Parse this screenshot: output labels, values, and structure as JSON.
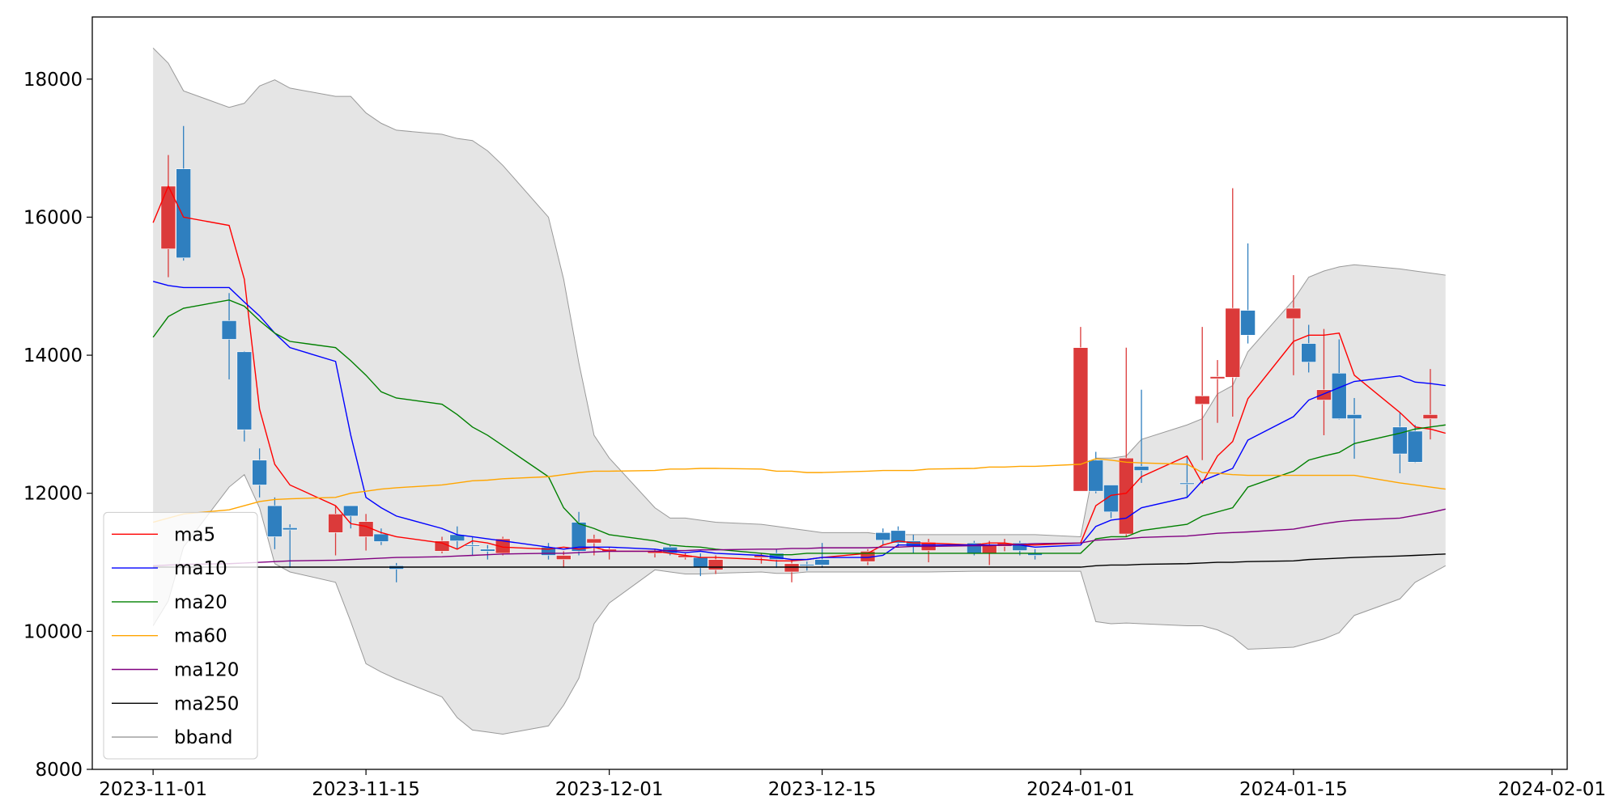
{
  "chart_data": {
    "type": "candlestick",
    "x": [
      "2023-11-01",
      "2023-11-02",
      "2023-11-03",
      "2023-11-06",
      "2023-11-07",
      "2023-11-08",
      "2023-11-09",
      "2023-11-10",
      "2023-11-13",
      "2023-11-14",
      "2023-11-15",
      "2023-11-16",
      "2023-11-17",
      "2023-11-20",
      "2023-11-21",
      "2023-11-22",
      "2023-11-23",
      "2023-11-24",
      "2023-11-27",
      "2023-11-28",
      "2023-11-29",
      "2023-11-30",
      "2023-12-01",
      "2023-12-04",
      "2023-12-05",
      "2023-12-06",
      "2023-12-07",
      "2023-12-08",
      "2023-12-11",
      "2023-12-12",
      "2023-12-13",
      "2023-12-14",
      "2023-12-15",
      "2023-12-18",
      "2023-12-19",
      "2023-12-20",
      "2023-12-21",
      "2023-12-22",
      "2023-12-25",
      "2023-12-26",
      "2023-12-27",
      "2023-12-28",
      "2023-12-29",
      "2024-01-01",
      "2024-01-02",
      "2024-01-03",
      "2024-01-04",
      "2024-01-05",
      "2024-01-08",
      "2024-01-09",
      "2024-01-10",
      "2024-01-11",
      "2024-01-12",
      "2024-01-15",
      "2024-01-16",
      "2024-01-17",
      "2024-01-18",
      "2024-01-19",
      "2024-01-22",
      "2024-01-23",
      "2024-01-24",
      "2024-01-25"
    ],
    "open": [
      null,
      15540,
      16700,
      14500,
      14050,
      12480,
      11820,
      11500,
      11430,
      11820,
      11370,
      11410,
      10950,
      11160,
      11400,
      11250,
      11190,
      11130,
      11220,
      11040,
      11580,
      11280,
      11160,
      11130,
      11220,
      11070,
      11070,
      10890,
      11070,
      11130,
      10860,
      10970,
      11040,
      11010,
      11430,
      11460,
      11310,
      11170,
      11280,
      11130,
      11230,
      11280,
      11130,
      12030,
      12480,
      12120,
      11410,
      12390,
      12150,
      13290,
      13660,
      13680,
      14650,
      14530,
      14170,
      13350,
      13740,
      13140,
      12960,
      12900,
      13080,
      null
    ],
    "high": [
      null,
      16900,
      17320,
      14900,
      14060,
      12650,
      11940,
      11550,
      11820,
      11820,
      11700,
      11490,
      10990,
      11370,
      11520,
      11370,
      11250,
      11370,
      11280,
      11160,
      11730,
      11400,
      11220,
      11190,
      11250,
      11130,
      11130,
      11100,
      11130,
      11190,
      11040,
      11010,
      11280,
      11190,
      11490,
      11520,
      11400,
      11340,
      11310,
      11310,
      11340,
      11310,
      11190,
      14410,
      12600,
      12120,
      14110,
      13500,
      12540,
      14410,
      13930,
      16420,
      15620,
      15160,
      14440,
      14380,
      14230,
      13380,
      13170,
      12990,
      13800,
      null
    ],
    "low": [
      null,
      15130,
      15370,
      13650,
      12750,
      11940,
      11190,
      10920,
      11100,
      11490,
      11170,
      11250,
      10710,
      11130,
      11190,
      11100,
      11040,
      11100,
      11040,
      10920,
      11100,
      11100,
      11040,
      11070,
      11100,
      11040,
      10800,
      10830,
      10980,
      10920,
      10710,
      10880,
      10920,
      10960,
      11250,
      11220,
      11130,
      11000,
      11100,
      10960,
      11160,
      11100,
      11040,
      12030,
      12000,
      11640,
      11370,
      12150,
      11940,
      12480,
      13020,
      13110,
      14170,
      13710,
      13750,
      12840,
      13070,
      12500,
      12290,
      12440,
      12780,
      null
    ],
    "close": [
      null,
      16450,
      15410,
      14230,
      12920,
      12120,
      11370,
      11470,
      11700,
      11670,
      11590,
      11300,
      10900,
      11310,
      11310,
      11240,
      11160,
      11340,
      11100,
      11100,
      11160,
      11340,
      11190,
      11160,
      11130,
      11100,
      10920,
      11040,
      11100,
      11040,
      10980,
      10950,
      10960,
      11160,
      11320,
      11280,
      11230,
      11290,
      11130,
      11250,
      11280,
      11170,
      11100,
      14110,
      12030,
      11730,
      12510,
      12330,
      12130,
      13410,
      13690,
      14680,
      14290,
      14680,
      13900,
      13500,
      13080,
      13080,
      12570,
      12450,
      13140,
      null
    ],
    "up_color": "#db3a3a",
    "down_color": "#2f7fbf",
    "series": [
      {
        "name": "ma5",
        "color": "#ff0000",
        "values": [
          15920,
          16450,
          16000,
          15880,
          15100,
          13220,
          12420,
          12120,
          11820,
          11560,
          11520,
          11430,
          11370,
          11280,
          11190,
          11310,
          11280,
          11220,
          11190,
          11220,
          11190,
          11220,
          11160,
          11160,
          11130,
          11100,
          11070,
          11070,
          11040,
          11020,
          11020,
          11040,
          11070,
          11130,
          11250,
          11310,
          11280,
          11280,
          11250,
          11280,
          11280,
          11250,
          11250,
          11280,
          11820,
          11970,
          12000,
          12240,
          12540,
          12150,
          12540,
          12750,
          13370,
          14200,
          14290,
          14290,
          14320,
          13710,
          13170,
          12960,
          12930,
          12870
        ]
      },
      {
        "name": "ma10",
        "color": "#0000ff",
        "values": [
          15070,
          15010,
          14980,
          14980,
          14770,
          14570,
          14320,
          14110,
          13910,
          12840,
          11940,
          11790,
          11670,
          11490,
          11400,
          11370,
          11340,
          11310,
          11220,
          11190,
          11220,
          11220,
          11220,
          11190,
          11160,
          11140,
          11160,
          11130,
          11100,
          11070,
          11040,
          11040,
          11070,
          11070,
          11100,
          11250,
          11250,
          11250,
          11250,
          11250,
          11250,
          11250,
          11220,
          11250,
          11520,
          11610,
          11640,
          11790,
          11940,
          12180,
          12270,
          12360,
          12770,
          13110,
          13350,
          13440,
          13530,
          13620,
          13700,
          13610,
          13590,
          13560
        ]
      },
      {
        "name": "ma20",
        "color": "#008000",
        "values": [
          14260,
          14560,
          14680,
          14800,
          14710,
          14500,
          14320,
          14200,
          14110,
          13920,
          13710,
          13470,
          13380,
          13290,
          13140,
          12960,
          12840,
          12690,
          12240,
          11790,
          11560,
          11490,
          11400,
          11310,
          11250,
          11230,
          11220,
          11190,
          11130,
          11110,
          11110,
          11130,
          11130,
          11130,
          11130,
          11130,
          11130,
          11130,
          11130,
          11130,
          11130,
          11130,
          11130,
          11130,
          11340,
          11370,
          11370,
          11460,
          11550,
          11670,
          11730,
          11790,
          12090,
          12320,
          12480,
          12540,
          12590,
          12720,
          12870,
          12930,
          12960,
          12990
        ]
      },
      {
        "name": "ma60",
        "color": "#ffa500",
        "values": [
          11580,
          11640,
          11700,
          11760,
          11820,
          11880,
          11910,
          11920,
          11940,
          12000,
          12030,
          12060,
          12080,
          12120,
          12150,
          12180,
          12190,
          12210,
          12240,
          12270,
          12300,
          12320,
          12320,
          12330,
          12350,
          12350,
          12360,
          12360,
          12350,
          12320,
          12320,
          12300,
          12300,
          12320,
          12330,
          12330,
          12330,
          12350,
          12360,
          12380,
          12380,
          12390,
          12390,
          12420,
          12500,
          12480,
          12450,
          12440,
          12420,
          12300,
          12290,
          12270,
          12260,
          12260,
          12260,
          12260,
          12260,
          12260,
          12150,
          12120,
          12090,
          12060
        ]
      },
      {
        "name": "ma120",
        "color": "#800080",
        "values": [
          10950,
          10960,
          10970,
          10980,
          10990,
          11000,
          11010,
          11020,
          11030,
          11040,
          11050,
          11060,
          11070,
          11080,
          11090,
          11100,
          11110,
          11120,
          11130,
          11130,
          11140,
          11150,
          11160,
          11160,
          11170,
          11170,
          11180,
          11180,
          11190,
          11190,
          11200,
          11200,
          11210,
          11210,
          11220,
          11220,
          11230,
          11230,
          11240,
          11240,
          11250,
          11260,
          11270,
          11280,
          11320,
          11330,
          11340,
          11360,
          11380,
          11400,
          11420,
          11430,
          11440,
          11480,
          11520,
          11560,
          11590,
          11610,
          11640,
          11680,
          11720,
          11770
        ]
      },
      {
        "name": "ma250",
        "color": "#000000",
        "values": [
          10930,
          10930,
          10930,
          10930,
          10930,
          10930,
          10930,
          10930,
          10930,
          10930,
          10930,
          10930,
          10930,
          10930,
          10930,
          10930,
          10930,
          10930,
          10930,
          10930,
          10930,
          10930,
          10930,
          10930,
          10930,
          10930,
          10930,
          10930,
          10930,
          10930,
          10930,
          10930,
          10930,
          10930,
          10930,
          10930,
          10930,
          10930,
          10930,
          10930,
          10930,
          10930,
          10930,
          10930,
          10950,
          10960,
          10960,
          10970,
          10980,
          10990,
          11000,
          11000,
          11010,
          11020,
          11040,
          11050,
          11060,
          11070,
          11090,
          11100,
          11110,
          11120
        ]
      }
    ],
    "bband": {
      "name": "bband",
      "color": "#999999",
      "fill": "#e5e5e5",
      "upper": [
        18450,
        18230,
        17830,
        17590,
        17650,
        17900,
        17990,
        17870,
        17750,
        17750,
        17510,
        17360,
        17260,
        17200,
        17140,
        17110,
        16960,
        16750,
        16000,
        15100,
        13890,
        12840,
        12510,
        11790,
        11640,
        11640,
        11610,
        11580,
        11550,
        11520,
        11490,
        11460,
        11430,
        11430,
        11400,
        11400,
        11400,
        11400,
        11400,
        11400,
        11400,
        11400,
        11400,
        11370,
        12510,
        12510,
        12540,
        12780,
        12990,
        13080,
        13440,
        13560,
        14050,
        14800,
        15130,
        15220,
        15280,
        15310,
        15250,
        15220,
        15190,
        15160
      ],
      "lower": [
        10080,
        10440,
        11220,
        12090,
        12270,
        11790,
        10980,
        10860,
        10710,
        10140,
        9530,
        9410,
        9310,
        9050,
        8750,
        8570,
        8540,
        8510,
        8630,
        8930,
        9320,
        10110,
        10410,
        10890,
        10860,
        10830,
        10830,
        10840,
        10860,
        10840,
        10840,
        10860,
        10860,
        10860,
        10860,
        10860,
        10860,
        10860,
        10870,
        10870,
        10870,
        10870,
        10870,
        10870,
        10140,
        10110,
        10120,
        10110,
        10080,
        10080,
        10020,
        9920,
        9740,
        9770,
        9830,
        9890,
        9980,
        10230,
        10470,
        10710,
        10830,
        10950
      ]
    },
    "xlim": [
      "2023-10-28",
      "2024-02-02"
    ],
    "xticks": [
      "2023-11-01",
      "2023-11-15",
      "2023-12-01",
      "2023-12-15",
      "2024-01-01",
      "2024-01-15",
      "2024-02-01"
    ],
    "ylim": [
      8000,
      18900
    ],
    "yticks": [
      8000,
      10000,
      12000,
      14000,
      16000,
      18000
    ],
    "legend": "lower left"
  }
}
